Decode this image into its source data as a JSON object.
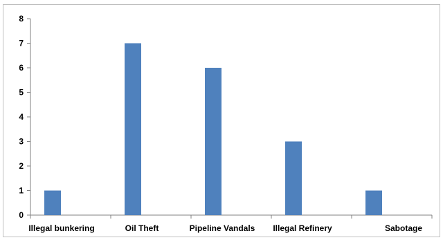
{
  "chart_data": {
    "type": "bar",
    "categories": [
      "Illegal bunkering",
      "Oil Theft",
      "Pipeline Vandals",
      "Illegal Refinery",
      "Sabotage"
    ],
    "values": [
      1,
      7,
      6,
      3,
      1
    ],
    "ylim": [
      0,
      8
    ],
    "yticks": [
      0,
      1,
      2,
      3,
      4,
      5,
      6,
      7,
      8
    ],
    "grid": false,
    "colors": {
      "bar": "#4F81BD",
      "axis": "#808080"
    }
  }
}
